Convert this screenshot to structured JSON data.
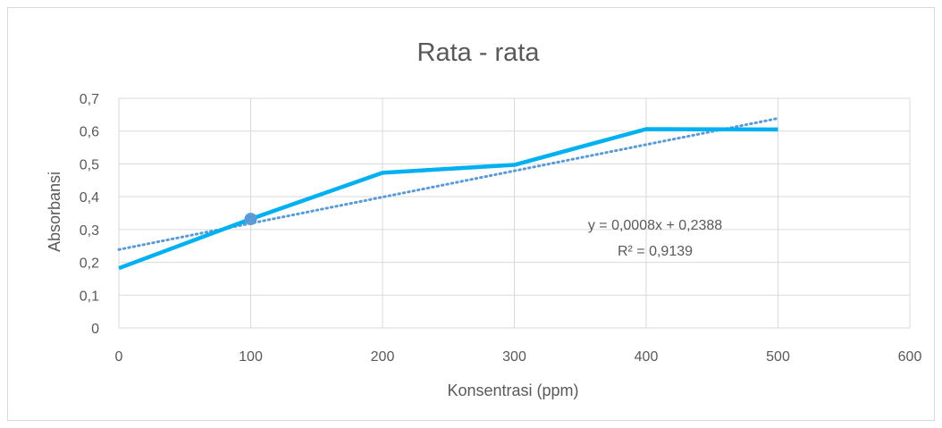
{
  "chart_data": {
    "type": "line",
    "title": "Rata - rata",
    "xlabel": "Konsentrasi (ppm)",
    "ylabel": "Absorbansi",
    "xlim": [
      0,
      600
    ],
    "ylim": [
      0,
      0.7
    ],
    "x_ticks": [
      "0",
      "100",
      "200",
      "300",
      "400",
      "500",
      "600"
    ],
    "y_ticks": [
      "0",
      "0,1",
      "0,2",
      "0,3",
      "0,4",
      "0,5",
      "0,6",
      "0,7"
    ],
    "grid": true,
    "series": [
      {
        "x": [
          0,
          100,
          200,
          300,
          400,
          500
        ],
        "y": [
          0.182,
          0.332,
          0.473,
          0.497,
          0.606,
          0.605
        ],
        "color": "#00b0f0",
        "highlighted_point_index": 1,
        "marker_color": "#5b9bd5"
      }
    ],
    "trendline": {
      "type": "linear",
      "slope": 0.0008,
      "intercept": 0.2388,
      "x_range": [
        0,
        500
      ],
      "color": "#5b9bd5",
      "style": "dotted",
      "equation": "y = 0,0008x + 0,2388",
      "r_squared": "R² = 0,9139"
    }
  }
}
